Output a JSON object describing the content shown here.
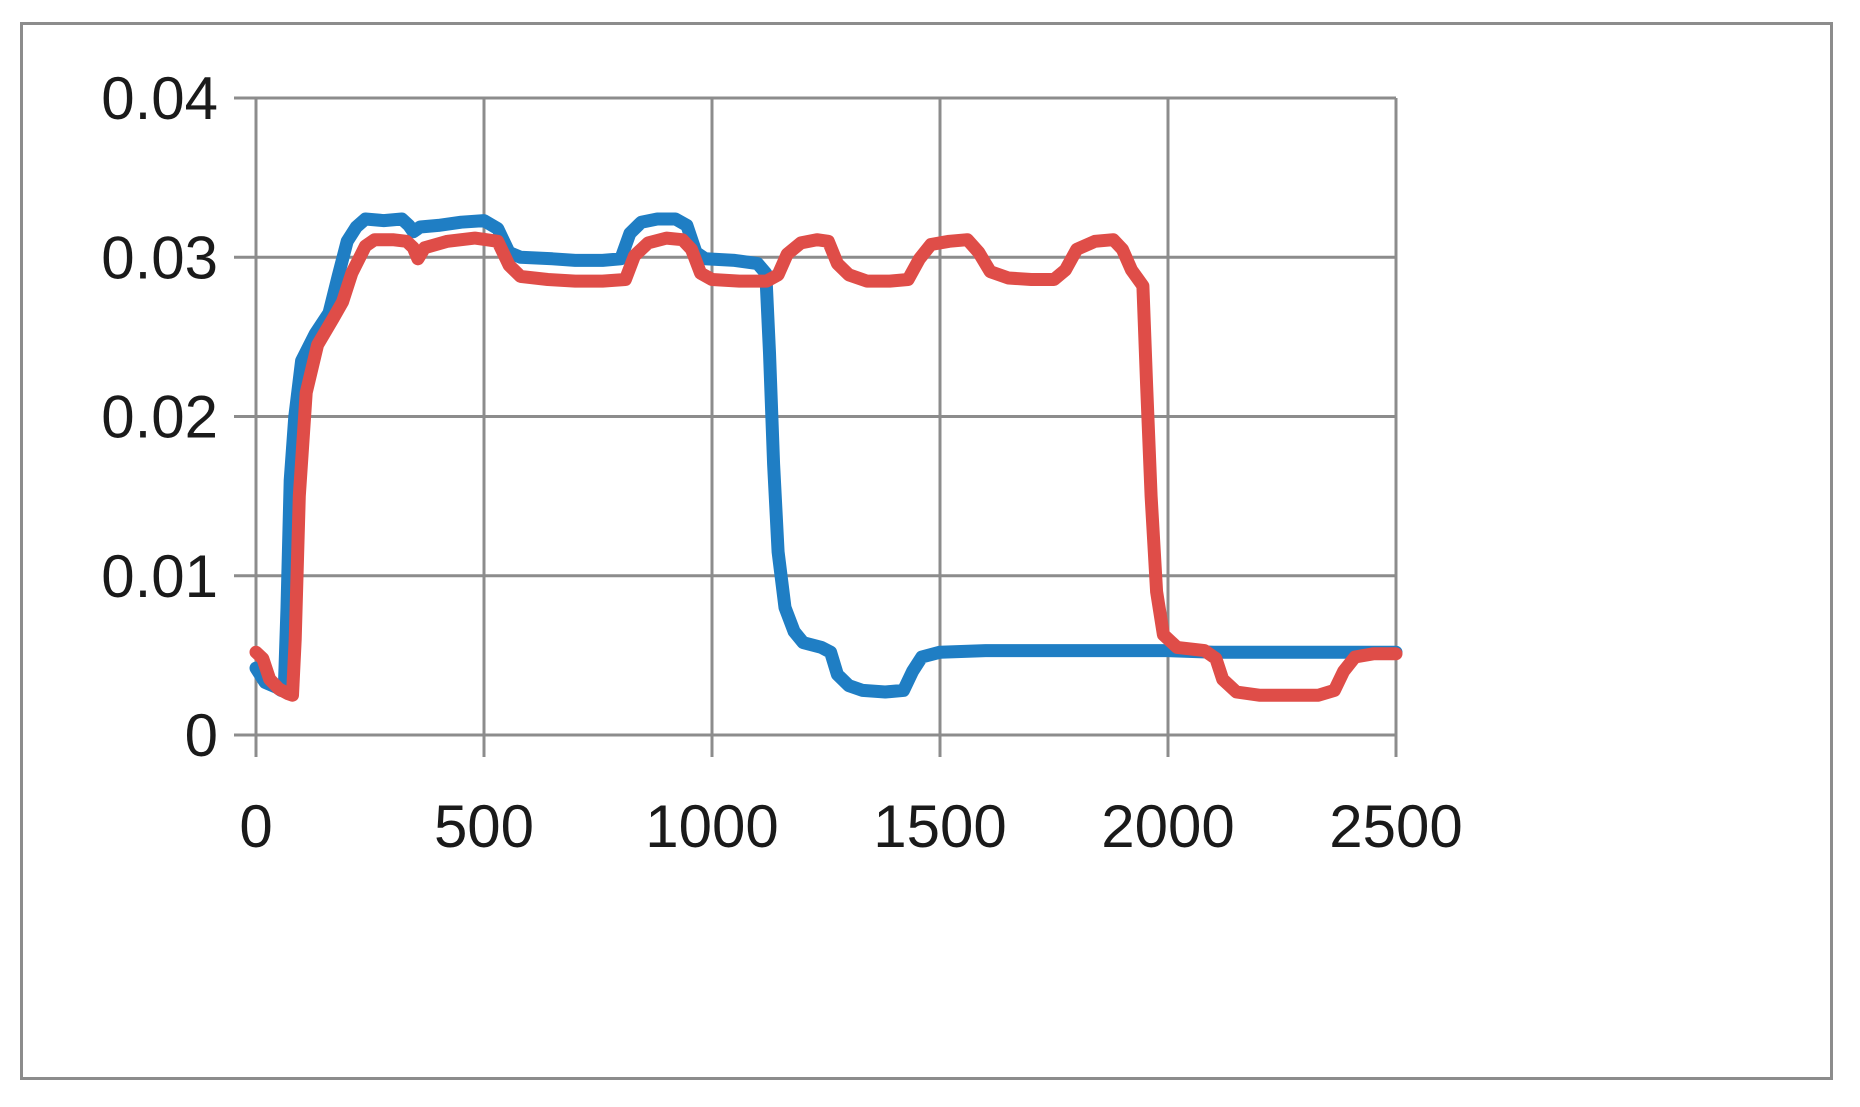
{
  "chart_data": {
    "type": "line",
    "title": "",
    "xlabel": "",
    "ylabel": "",
    "xlim": [
      0,
      2500
    ],
    "ylim": [
      0,
      0.04
    ],
    "x_ticks": [
      "0",
      "500",
      "1000",
      "1500",
      "2000",
      "2500"
    ],
    "y_ticks": [
      "0",
      "0.01",
      "0.02",
      "0.03",
      "0.04"
    ],
    "grid": true,
    "legend": "none",
    "series": [
      {
        "color": "#1f7ec4",
        "points": [
          [
            0,
            0.0042
          ],
          [
            20,
            0.0033
          ],
          [
            45,
            0.003
          ],
          [
            55,
            0.0028
          ],
          [
            62,
            0.0029
          ],
          [
            68,
            0.008
          ],
          [
            75,
            0.016
          ],
          [
            85,
            0.02
          ],
          [
            100,
            0.0235
          ],
          [
            130,
            0.0252
          ],
          [
            160,
            0.0265
          ],
          [
            180,
            0.0288
          ],
          [
            200,
            0.031
          ],
          [
            220,
            0.0319
          ],
          [
            240,
            0.0324
          ],
          [
            280,
            0.0323
          ],
          [
            320,
            0.0324
          ],
          [
            335,
            0.032
          ],
          [
            345,
            0.0316
          ],
          [
            360,
            0.0319
          ],
          [
            400,
            0.032
          ],
          [
            450,
            0.0322
          ],
          [
            500,
            0.0323
          ],
          [
            530,
            0.0318
          ],
          [
            555,
            0.0303
          ],
          [
            580,
            0.03
          ],
          [
            650,
            0.0299
          ],
          [
            700,
            0.0298
          ],
          [
            760,
            0.0298
          ],
          [
            800,
            0.0299
          ],
          [
            820,
            0.0315
          ],
          [
            845,
            0.0322
          ],
          [
            880,
            0.0324
          ],
          [
            920,
            0.0324
          ],
          [
            945,
            0.032
          ],
          [
            965,
            0.0303
          ],
          [
            985,
            0.0299
          ],
          [
            1050,
            0.0298
          ],
          [
            1100,
            0.0296
          ],
          [
            1118,
            0.029
          ],
          [
            1126,
            0.024
          ],
          [
            1135,
            0.017
          ],
          [
            1145,
            0.0115
          ],
          [
            1160,
            0.008
          ],
          [
            1180,
            0.0065
          ],
          [
            1200,
            0.0058
          ],
          [
            1240,
            0.0055
          ],
          [
            1260,
            0.0052
          ],
          [
            1275,
            0.0038
          ],
          [
            1300,
            0.0031
          ],
          [
            1330,
            0.0028
          ],
          [
            1380,
            0.0027
          ],
          [
            1420,
            0.0028
          ],
          [
            1440,
            0.004
          ],
          [
            1460,
            0.0049
          ],
          [
            1500,
            0.0052
          ],
          [
            1600,
            0.0053
          ],
          [
            1700,
            0.0053
          ],
          [
            1800,
            0.0053
          ],
          [
            1900,
            0.0053
          ],
          [
            2000,
            0.0053
          ],
          [
            2100,
            0.0052
          ],
          [
            2200,
            0.0052
          ],
          [
            2300,
            0.0052
          ],
          [
            2400,
            0.0052
          ],
          [
            2500,
            0.0052
          ]
        ]
      },
      {
        "color": "#df4d48",
        "points": [
          [
            0,
            0.0052
          ],
          [
            15,
            0.0048
          ],
          [
            30,
            0.0035
          ],
          [
            50,
            0.0029
          ],
          [
            70,
            0.0026
          ],
          [
            80,
            0.0025
          ],
          [
            86,
            0.006
          ],
          [
            95,
            0.015
          ],
          [
            110,
            0.0215
          ],
          [
            135,
            0.0245
          ],
          [
            170,
            0.0262
          ],
          [
            190,
            0.0272
          ],
          [
            210,
            0.029
          ],
          [
            240,
            0.0307
          ],
          [
            260,
            0.0311
          ],
          [
            300,
            0.0311
          ],
          [
            330,
            0.031
          ],
          [
            345,
            0.0306
          ],
          [
            355,
            0.0299
          ],
          [
            370,
            0.0306
          ],
          [
            420,
            0.031
          ],
          [
            480,
            0.0312
          ],
          [
            530,
            0.031
          ],
          [
            555,
            0.0295
          ],
          [
            580,
            0.0288
          ],
          [
            640,
            0.0286
          ],
          [
            700,
            0.0285
          ],
          [
            760,
            0.0285
          ],
          [
            810,
            0.0286
          ],
          [
            830,
            0.0301
          ],
          [
            860,
            0.0309
          ],
          [
            900,
            0.0312
          ],
          [
            935,
            0.0311
          ],
          [
            955,
            0.0305
          ],
          [
            975,
            0.029
          ],
          [
            1000,
            0.0286
          ],
          [
            1060,
            0.0285
          ],
          [
            1120,
            0.0285
          ],
          [
            1145,
            0.0289
          ],
          [
            1165,
            0.0302
          ],
          [
            1195,
            0.0309
          ],
          [
            1230,
            0.0311
          ],
          [
            1255,
            0.031
          ],
          [
            1275,
            0.0296
          ],
          [
            1300,
            0.0289
          ],
          [
            1340,
            0.0285
          ],
          [
            1390,
            0.0285
          ],
          [
            1430,
            0.0286
          ],
          [
            1455,
            0.0299
          ],
          [
            1480,
            0.0308
          ],
          [
            1520,
            0.031
          ],
          [
            1560,
            0.0311
          ],
          [
            1585,
            0.0303
          ],
          [
            1610,
            0.0291
          ],
          [
            1650,
            0.0287
          ],
          [
            1700,
            0.0286
          ],
          [
            1750,
            0.0286
          ],
          [
            1775,
            0.0292
          ],
          [
            1800,
            0.0305
          ],
          [
            1840,
            0.031
          ],
          [
            1880,
            0.0311
          ],
          [
            1900,
            0.0305
          ],
          [
            1920,
            0.0292
          ],
          [
            1945,
            0.0282
          ],
          [
            1953,
            0.022
          ],
          [
            1963,
            0.015
          ],
          [
            1975,
            0.009
          ],
          [
            1990,
            0.0063
          ],
          [
            2020,
            0.0055
          ],
          [
            2080,
            0.0053
          ],
          [
            2105,
            0.0048
          ],
          [
            2120,
            0.0035
          ],
          [
            2150,
            0.0027
          ],
          [
            2200,
            0.0025
          ],
          [
            2260,
            0.0025
          ],
          [
            2330,
            0.0025
          ],
          [
            2365,
            0.0028
          ],
          [
            2385,
            0.004
          ],
          [
            2410,
            0.0049
          ],
          [
            2450,
            0.0051
          ],
          [
            2500,
            0.0051
          ]
        ]
      }
    ]
  }
}
